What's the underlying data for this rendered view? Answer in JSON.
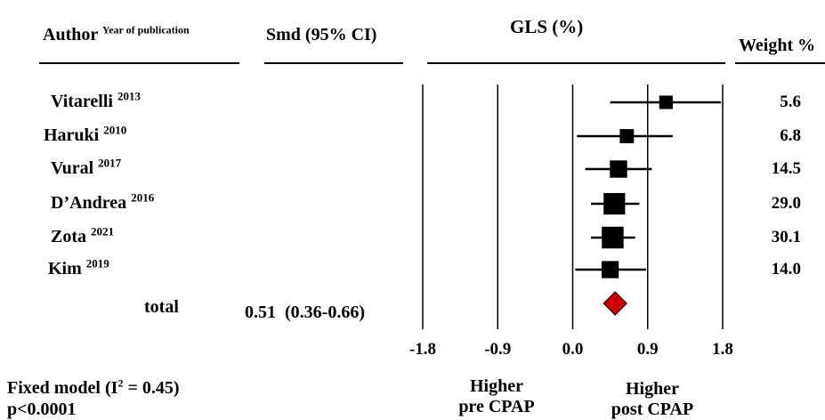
{
  "headers": {
    "author": "Author",
    "author_sup": "Year of publication",
    "smd": "Smd (95% CI)",
    "gls": "GLS (%)",
    "weight": "Weight %"
  },
  "total": {
    "label": "total",
    "smd": "0.51",
    "ci": "(0.36-0.66)"
  },
  "model": {
    "line1_prefix": "Fixed model (I",
    "line1_sup": "2",
    "line1_suffix": " = 0.45)",
    "line2": "p<0.0001"
  },
  "direction": {
    "left_line1": "Higher",
    "left_line2": "pre CPAP",
    "right_line1": "Higher",
    "right_line2": "post CPAP"
  },
  "chart_data": {
    "type": "forest",
    "xlim": [
      -1.8,
      1.8
    ],
    "xticks": [
      "-1.8",
      "-0.9",
      "0.0",
      "0.9",
      "1.8"
    ],
    "tick_values": [
      -1.8,
      -0.9,
      0.0,
      0.9,
      1.8
    ],
    "studies": [
      {
        "author": "Vitarelli",
        "year": "2013",
        "smd": 1.12,
        "ci": [
          0.45,
          1.78
        ],
        "weight": "5.6"
      },
      {
        "author": "Haruki",
        "year": "2010",
        "smd": 0.65,
        "ci": [
          0.05,
          1.2
        ],
        "weight": "6.8"
      },
      {
        "author": "Vural",
        "year": "2017",
        "smd": 0.55,
        "ci": [
          0.15,
          0.95
        ],
        "weight": "14.5"
      },
      {
        "author": "D’Andrea",
        "year": "2016",
        "smd": 0.5,
        "ci": [
          0.22,
          0.8
        ],
        "weight": "29.0"
      },
      {
        "author": "Zota",
        "year": "2021",
        "smd": 0.48,
        "ci": [
          0.22,
          0.75
        ],
        "weight": "30.1"
      },
      {
        "author": "Kim",
        "year": "2019",
        "smd": 0.45,
        "ci": [
          0.03,
          0.88
        ],
        "weight": "14.0"
      }
    ],
    "pooled": {
      "smd": 0.51,
      "ci": [
        0.36,
        0.66
      ]
    },
    "colors": {
      "diamond": "#cc0000",
      "marks": "#000000"
    }
  }
}
